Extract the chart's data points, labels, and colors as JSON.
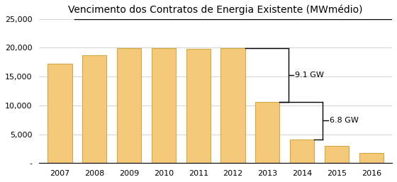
{
  "title_main": "Vencimento dos Contratos de Energia Existente",
  "title_unit": " (MWmédio)",
  "years": [
    2007,
    2008,
    2009,
    2010,
    2011,
    2012,
    2013,
    2014,
    2015,
    2016
  ],
  "values": [
    17200,
    18700,
    19900,
    19900,
    19800,
    19900,
    10600,
    4100,
    3000,
    1700
  ],
  "bar_color": "#F5C97A",
  "bar_edgecolor": "#D4A843",
  "background_color": "#FFFFFF",
  "ylim": [
    0,
    25000
  ],
  "yticks": [
    0,
    5000,
    10000,
    15000,
    20000,
    25000
  ],
  "ytick_labels": [
    "-",
    "5,000",
    "10,000",
    "15,000",
    "20,000",
    "25,000"
  ],
  "annotation1_text": "9.1 GW",
  "annotation2_text": "6.8 GW",
  "grid_color": "#CCCCCC"
}
